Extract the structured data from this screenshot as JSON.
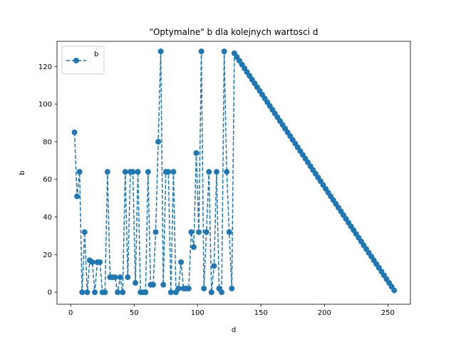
{
  "chart_data": {
    "type": "line",
    "title": "\"Optymalne\" b dla kolejnych wartosci d",
    "xlabel": "d",
    "ylabel": "b",
    "xlim": [
      -10.8,
      267.8
    ],
    "ylim": [
      -6.35,
      133.35
    ],
    "xticks": [
      0,
      50,
      100,
      150,
      200,
      250
    ],
    "yticks": [
      0,
      20,
      40,
      60,
      80,
      100,
      120
    ],
    "grid": false,
    "legend_position": "top-left",
    "line_style": "dashed",
    "marker": "circle",
    "color": "#1f77b4",
    "series": [
      {
        "name": "b",
        "x": [
          3,
          5,
          7,
          9,
          11,
          13,
          15,
          17,
          19,
          21,
          23,
          25,
          27,
          29,
          31,
          33,
          35,
          37,
          39,
          41,
          43,
          45,
          47,
          49,
          51,
          53,
          55,
          57,
          59,
          61,
          63,
          65,
          67,
          69,
          71,
          73,
          75,
          77,
          79,
          81,
          83,
          85,
          87,
          89,
          91,
          93,
          95,
          97,
          99,
          101,
          103,
          105,
          107,
          109,
          111,
          113,
          115,
          117,
          119,
          121,
          123,
          125,
          127,
          129,
          131,
          133,
          135,
          137,
          139,
          141,
          143,
          145,
          147,
          149,
          151,
          153,
          155,
          157,
          159,
          161,
          163,
          165,
          167,
          169,
          171,
          173,
          175,
          177,
          179,
          181,
          183,
          185,
          187,
          189,
          191,
          193,
          195,
          197,
          199,
          201,
          203,
          205,
          207,
          209,
          211,
          213,
          215,
          217,
          219,
          221,
          223,
          225,
          227,
          229,
          231,
          233,
          235,
          237,
          239,
          241,
          243,
          245,
          247,
          249,
          251,
          253,
          255
        ],
        "y": [
          85,
          51,
          64,
          0,
          32,
          0,
          17,
          16,
          0,
          16,
          16,
          0,
          0,
          64,
          8,
          8,
          8,
          0,
          8,
          0,
          64,
          8,
          64,
          64,
          5,
          64,
          0,
          0,
          0,
          64,
          4,
          4,
          32,
          80,
          128,
          4,
          64,
          64,
          0,
          64,
          0,
          2,
          16,
          2,
          2,
          2,
          32,
          24,
          74,
          32,
          128,
          2,
          32,
          64,
          0,
          14,
          64,
          2,
          0,
          128,
          64,
          32,
          2,
          127,
          125,
          123,
          121,
          119,
          117,
          115,
          113,
          111,
          109,
          107,
          105,
          103,
          101,
          99,
          97,
          95,
          93,
          91,
          89,
          87,
          85,
          83,
          81,
          79,
          77,
          75,
          73,
          71,
          69,
          67,
          65,
          63,
          61,
          59,
          57,
          55,
          53,
          51,
          49,
          47,
          45,
          43,
          41,
          39,
          37,
          35,
          33,
          31,
          29,
          27,
          25,
          23,
          21,
          19,
          17,
          15,
          13,
          11,
          9,
          7,
          5,
          3,
          1
        ]
      }
    ]
  }
}
